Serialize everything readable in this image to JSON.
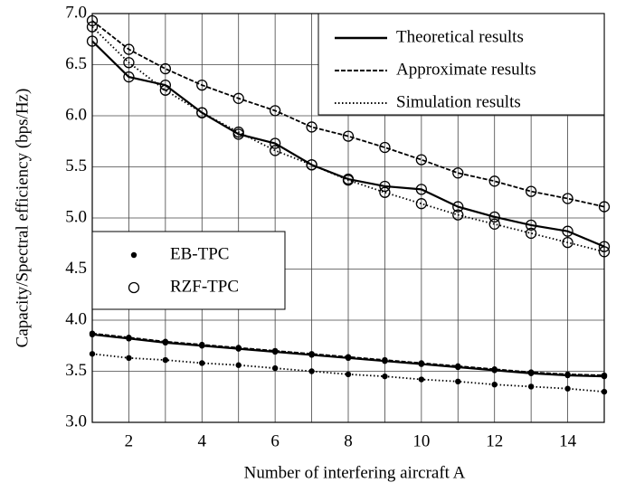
{
  "chart_data": {
    "type": "line",
    "x_label": "Number of interfering aircraft A",
    "y_label": "Capacity/Spectral efficiency (bps/Hz)",
    "x": [
      1,
      2,
      3,
      4,
      5,
      6,
      7,
      8,
      9,
      10,
      11,
      12,
      13,
      14,
      15
    ],
    "xlim": [
      1,
      15
    ],
    "xticks": [
      2,
      4,
      6,
      8,
      10,
      12,
      14
    ],
    "xminorticks": [
      3,
      5,
      7,
      9,
      11,
      13
    ],
    "ylim": [
      3,
      7
    ],
    "yticks": [
      {
        "value": 3,
        "label": "3.0"
      },
      3.5,
      {
        "value": 4,
        "label": "4.0"
      },
      4.5,
      {
        "value": 5,
        "label": "5.0"
      },
      5.5,
      {
        "value": 6,
        "label": "6.0"
      },
      6.5,
      {
        "value": 7,
        "label": "7.0"
      }
    ],
    "grid": true,
    "color": "#000000",
    "line_legend": {
      "corner": "upper right",
      "entries": [
        {
          "name": "Theoretical results",
          "dash": "solid"
        },
        {
          "name": "Approximate results",
          "dash": "dashed"
        },
        {
          "name": "Simulation results",
          "dash": "dotted"
        }
      ]
    },
    "marker_legend": {
      "corner": "center left",
      "entries": [
        {
          "name": "EB-TPC",
          "marker": "dot"
        },
        {
          "name": "RZF-TPC",
          "marker": "circle"
        }
      ]
    },
    "series": [
      {
        "dash": "solid",
        "marker": "circle",
        "values": [
          6.73,
          6.38,
          6.3,
          6.03,
          5.82,
          5.73,
          5.52,
          5.38,
          5.31,
          5.28,
          5.11,
          5.01,
          4.93,
          4.87,
          4.72
        ]
      },
      {
        "dash": "dashed",
        "marker": "circle",
        "values": [
          6.93,
          6.65,
          6.46,
          6.3,
          6.17,
          6.05,
          5.89,
          5.8,
          5.69,
          5.57,
          5.44,
          5.36,
          5.26,
          5.19,
          5.11
        ]
      },
      {
        "dash": "dotted",
        "marker": "circle",
        "values": [
          6.87,
          6.52,
          6.25,
          6.03,
          5.84,
          5.66,
          5.52,
          5.37,
          5.25,
          5.14,
          5.03,
          4.94,
          4.85,
          4.76,
          4.67
        ]
      },
      {
        "dash": "solid",
        "marker": "dot",
        "values": [
          3.86,
          3.82,
          3.78,
          3.75,
          3.72,
          3.69,
          3.66,
          3.63,
          3.6,
          3.57,
          3.54,
          3.51,
          3.48,
          3.46,
          3.45
        ]
      },
      {
        "dash": "dashed",
        "marker": "dot",
        "values": [
          3.87,
          3.83,
          3.79,
          3.76,
          3.73,
          3.7,
          3.67,
          3.64,
          3.61,
          3.58,
          3.55,
          3.52,
          3.49,
          3.47,
          3.46
        ]
      },
      {
        "dash": "dotted",
        "marker": "dot",
        "values": [
          3.67,
          3.63,
          3.61,
          3.58,
          3.56,
          3.53,
          3.5,
          3.47,
          3.45,
          3.42,
          3.4,
          3.37,
          3.35,
          3.33,
          3.3
        ]
      }
    ]
  }
}
